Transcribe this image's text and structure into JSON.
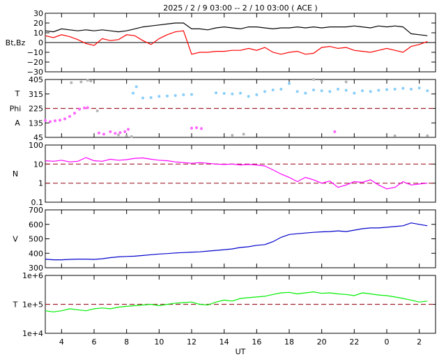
{
  "title": "2025 / 2 / 9   03:00 -- 2 / 10   03:00 ( ACE )",
  "xlabel": "UT",
  "x_ticks": [
    "4",
    "6",
    "8",
    "10",
    "12",
    "14",
    "16",
    "18",
    "20",
    "22",
    "0",
    "2"
  ],
  "colors": {
    "bt": "#000000",
    "bz": "#ff0000",
    "phi_toward": "#87cefa",
    "phi_away": "#ff66ff",
    "phi_other": "#b4b4b4",
    "density": "#ff00ff",
    "speed": "#0000cc",
    "temperature": "#00ee00",
    "ref_line": "#a02030"
  },
  "chart_data": [
    {
      "type": "line",
      "panel": "magnetic-field",
      "ylabel": "Bt,Bz",
      "ylim": [
        -30,
        30
      ],
      "yticks": [
        "30",
        "20",
        "10",
        "0",
        "−10",
        "−20",
        "−30"
      ],
      "x_unit": "hours since 03:00 UT",
      "series": [
        {
          "name": "Bt",
          "color": "#000000",
          "x": [
            0,
            0.5,
            1,
            1.5,
            2,
            2.5,
            3,
            3.5,
            4,
            4.5,
            5,
            5.5,
            6,
            6.5,
            7,
            7.5,
            8,
            8.5,
            9,
            9.5,
            10,
            10.5,
            11,
            11.5,
            12,
            12.5,
            13,
            13.5,
            14,
            14.5,
            15,
            15.5,
            16,
            16.5,
            17,
            17.5,
            18,
            18.5,
            19,
            19.5,
            20,
            20.5,
            21,
            21.5,
            22,
            22.5,
            23,
            23.5
          ],
          "values": [
            12,
            11,
            14,
            13,
            12,
            13,
            12,
            13,
            12,
            11,
            12,
            14,
            16,
            17,
            18,
            19,
            20,
            20,
            14,
            14,
            13,
            15,
            16,
            15,
            14,
            16,
            16,
            15,
            14,
            15,
            15,
            16,
            15,
            16,
            15,
            16,
            16,
            16,
            17,
            16,
            15,
            17,
            16,
            17,
            16,
            9,
            8,
            7
          ]
        },
        {
          "name": "Bz",
          "color": "#ff0000",
          "x": [
            0,
            0.5,
            1,
            1.5,
            2,
            2.5,
            3,
            3.5,
            4,
            4.5,
            5,
            5.5,
            6,
            6.5,
            7,
            7.5,
            8,
            8.5,
            9,
            9.5,
            10,
            10.5,
            11,
            11.5,
            12,
            12.5,
            13,
            13.5,
            14,
            14.5,
            15,
            15.5,
            16,
            16.5,
            17,
            17.5,
            18,
            18.5,
            19,
            19.5,
            20,
            20.5,
            21,
            21.5,
            22,
            22.5,
            23,
            23.5
          ],
          "values": [
            7,
            5,
            8,
            6,
            3,
            -1,
            -3,
            4,
            2,
            3,
            8,
            7,
            2,
            -2,
            4,
            8,
            11,
            12,
            -12,
            -10,
            -10,
            -9,
            -9,
            -8,
            -8,
            -6,
            -8,
            -5,
            -10,
            -12,
            -10,
            -9,
            -12,
            -11,
            -5,
            -4,
            -6,
            -5,
            -8,
            -9,
            -10,
            -8,
            -6,
            -8,
            -10,
            -4,
            -2,
            1
          ]
        }
      ]
    },
    {
      "type": "scatter",
      "panel": "imf-angle",
      "ylabel": "Phi",
      "side_labels": [
        "T",
        "A"
      ],
      "ylim": [
        45,
        405
      ],
      "yticks": [
        "405",
        "315",
        "225",
        "135",
        "45"
      ],
      "reference_lines": [
        225
      ],
      "x_unit": "hours since 03:00 UT",
      "series": [
        {
          "name": "A",
          "color": "#ff66ff",
          "x": [
            0,
            0.3,
            0.6,
            0.9,
            1.2,
            1.5,
            1.8,
            2.1,
            2.4,
            2.6,
            3.3,
            3.6,
            4.0,
            4.3,
            4.6,
            4.9,
            5.1,
            9.0,
            9.3,
            9.6,
            17.8
          ],
          "values": [
            150,
            143,
            148,
            152,
            160,
            175,
            195,
            220,
            228,
            230,
            72,
            65,
            80,
            70,
            75,
            80,
            95,
            102,
            105,
            100,
            80
          ]
        },
        {
          "name": "T",
          "color": "#87cefa",
          "x": [
            5.4,
            5.6,
            6.0,
            6.5,
            7.0,
            7.5,
            8.0,
            8.5,
            9.0,
            10.5,
            11.0,
            11.5,
            12.0,
            12.5,
            13.0,
            13.5,
            14.0,
            14.5,
            15.0,
            15.5,
            16.0,
            16.5,
            17.0,
            17.5,
            18.0,
            18.5,
            19.0,
            19.5,
            20.0,
            20.5,
            21.0,
            21.5,
            22.0,
            22.5,
            23.0,
            23.5
          ],
          "values": [
            320,
            360,
            290,
            292,
            300,
            302,
            305,
            310,
            312,
            322,
            318,
            315,
            320,
            300,
            310,
            330,
            340,
            345,
            380,
            330,
            320,
            340,
            335,
            330,
            345,
            338,
            320,
            335,
            330,
            338,
            342,
            345,
            350,
            345,
            352,
            335
          ]
        },
        {
          "name": "other",
          "color": "#b4b4b4",
          "x": [
            1.6,
            2.2,
            2.6,
            2.8,
            3.2,
            4.5,
            5.0,
            5.3,
            11.5,
            12.2,
            16.5,
            17.0,
            18.5,
            21.5,
            23.5
          ],
          "values": [
            385,
            390,
            400,
            395,
            210,
            60,
            55,
            50,
            58,
            65,
            405,
            395,
            390,
            55,
            55
          ]
        }
      ]
    },
    {
      "type": "line",
      "panel": "density",
      "ylabel": "N",
      "yscale": "log",
      "ylim": [
        0.1,
        100
      ],
      "yticks": [
        "100",
        "10",
        "1",
        "0.1"
      ],
      "reference_lines": [
        10,
        1
      ],
      "x_unit": "hours since 03:00 UT",
      "series": [
        {
          "name": "N",
          "color": "#ff00ff",
          "x": [
            0,
            0.5,
            1,
            1.5,
            2,
            2.5,
            3,
            3.5,
            4,
            4.5,
            5,
            5.5,
            6,
            6.5,
            7,
            7.5,
            8,
            8.5,
            9,
            9.5,
            10,
            10.5,
            11,
            11.5,
            12,
            12.5,
            13,
            13.5,
            14,
            14.5,
            15,
            15.5,
            16,
            16.5,
            17,
            17.5,
            18,
            18.5,
            19,
            19.5,
            20,
            20.5,
            21,
            21.5,
            22,
            22.5,
            23,
            23.5
          ],
          "values": [
            15,
            14,
            16,
            13,
            14,
            22,
            15,
            14,
            18,
            16,
            17,
            20,
            21,
            18,
            16,
            15,
            13,
            12,
            11,
            12,
            11,
            10,
            9.5,
            10,
            9,
            9.5,
            9,
            8,
            5,
            3,
            2,
            1.2,
            2,
            1.5,
            1,
            1.3,
            0.6,
            0.8,
            1.2,
            1.1,
            1.5,
            0.8,
            0.5,
            0.6,
            1.2,
            0.8,
            0.9,
            1.0
          ]
        }
      ]
    },
    {
      "type": "line",
      "panel": "speed",
      "ylabel": "V",
      "ylim": [
        300,
        700
      ],
      "yticks": [
        "700",
        "600",
        "500",
        "400",
        "300"
      ],
      "x_unit": "hours since 03:00 UT",
      "series": [
        {
          "name": "V",
          "color": "#0000cc",
          "x": [
            0,
            0.5,
            1,
            1.5,
            2,
            2.5,
            3,
            3.5,
            4,
            4.5,
            5,
            5.5,
            6,
            6.5,
            7,
            7.5,
            8,
            8.5,
            9,
            9.5,
            10,
            10.5,
            11,
            11.5,
            12,
            12.5,
            13,
            13.5,
            14,
            14.5,
            15,
            15.5,
            16,
            16.5,
            17,
            17.5,
            18,
            18.5,
            19,
            19.5,
            20,
            20.5,
            21,
            21.5,
            22,
            22.5,
            23,
            23.5
          ],
          "values": [
            360,
            355,
            355,
            358,
            360,
            360,
            358,
            362,
            370,
            375,
            378,
            380,
            385,
            390,
            395,
            398,
            402,
            405,
            408,
            410,
            415,
            420,
            425,
            430,
            440,
            445,
            455,
            460,
            480,
            510,
            530,
            535,
            540,
            545,
            548,
            550,
            555,
            550,
            560,
            570,
            575,
            575,
            580,
            585,
            590,
            610,
            600,
            590
          ]
        }
      ]
    },
    {
      "type": "line",
      "panel": "temperature",
      "ylabel": "T",
      "yscale": "log",
      "ylim": [
        10000,
        1000000
      ],
      "yticks": [
        "1e+6",
        "1e+5",
        "1e+4"
      ],
      "reference_lines": [
        100000
      ],
      "x_unit": "hours since 03:00 UT",
      "series": [
        {
          "name": "T",
          "color": "#00ee00",
          "x": [
            0,
            0.5,
            1,
            1.5,
            2,
            2.5,
            3,
            3.5,
            4,
            4.5,
            5,
            5.5,
            6,
            6.5,
            7,
            7.5,
            8,
            8.5,
            9,
            9.5,
            10,
            10.5,
            11,
            11.5,
            12,
            12.5,
            13,
            13.5,
            14,
            14.5,
            15,
            15.5,
            16,
            16.5,
            17,
            17.5,
            18,
            18.5,
            19,
            19.5,
            20,
            20.5,
            21,
            21.5,
            22,
            22.5,
            23,
            23.5
          ],
          "values": [
            60000,
            55000,
            60000,
            70000,
            65000,
            60000,
            70000,
            75000,
            70000,
            80000,
            85000,
            90000,
            95000,
            100000,
            90000,
            100000,
            110000,
            115000,
            120000,
            100000,
            95000,
            120000,
            140000,
            130000,
            160000,
            170000,
            180000,
            190000,
            220000,
            250000,
            260000,
            230000,
            250000,
            270000,
            240000,
            250000,
            230000,
            220000,
            200000,
            250000,
            230000,
            210000,
            200000,
            180000,
            160000,
            140000,
            120000,
            130000
          ]
        }
      ]
    }
  ]
}
